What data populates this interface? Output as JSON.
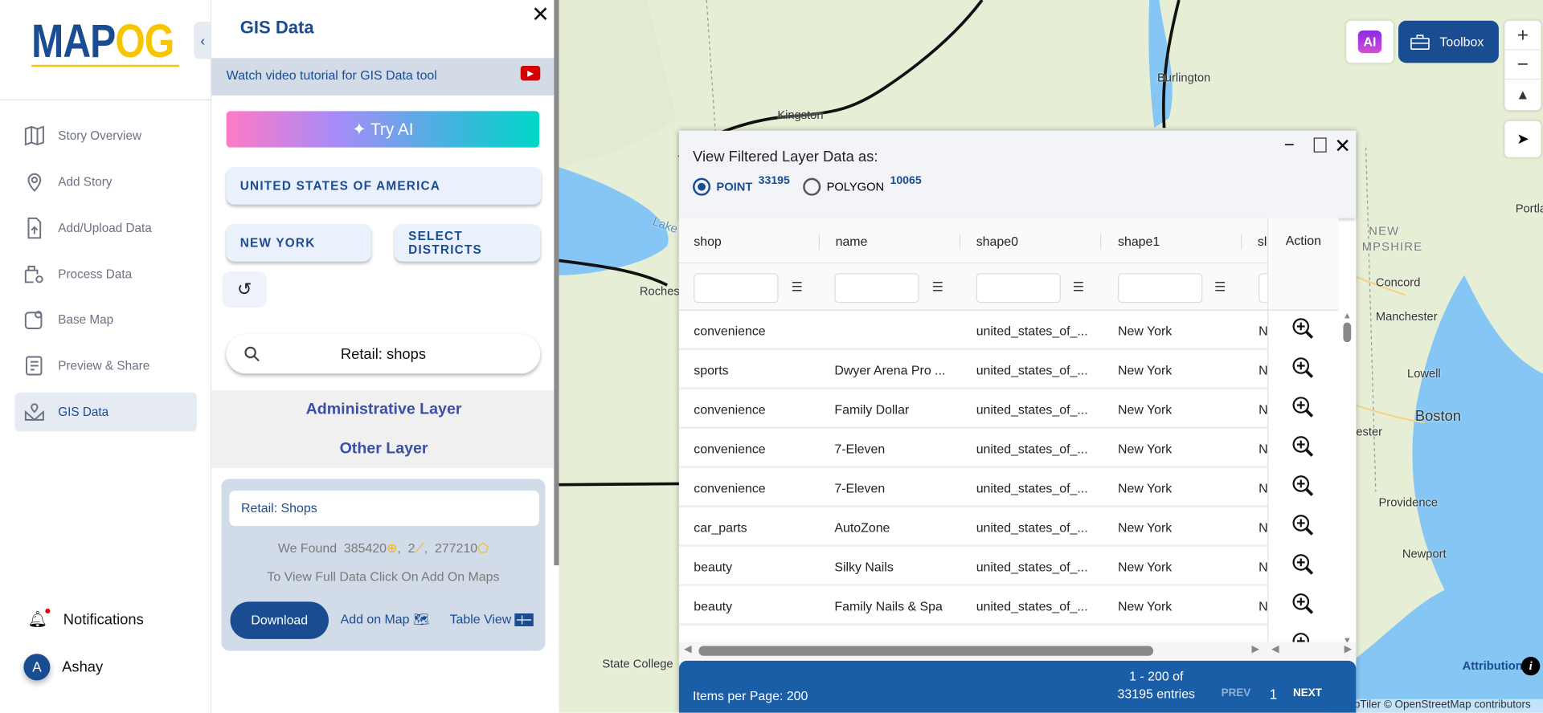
{
  "sidebar": {
    "logo": {
      "part1": "MAP",
      "part2": "OG"
    },
    "items": [
      {
        "label": "Story Overview",
        "icon": "map-icon"
      },
      {
        "label": "Add Story",
        "icon": "location-pin-icon"
      },
      {
        "label": "Add/Upload Data",
        "icon": "file-upload-icon"
      },
      {
        "label": "Process Data",
        "icon": "process-data-icon"
      },
      {
        "label": "Base Map",
        "icon": "base-map-icon"
      },
      {
        "label": "Preview & Share",
        "icon": "preview-share-icon"
      },
      {
        "label": "GIS Data",
        "icon": "gis-data-icon",
        "active": true
      }
    ],
    "notifications": "Notifications",
    "user": {
      "initial": "A",
      "name": "Ashay"
    }
  },
  "panel": {
    "title": "GIS Data",
    "tutorial": "Watch video tutorial for GIS Data tool",
    "try_ai": "Try AI",
    "country": "UNITED STATES OF AMERICA",
    "state": "NEW YORK",
    "districts": "SELECT DISTRICTS",
    "search_value": "Retail: shops",
    "admin_layer": "Administrative Layer",
    "other_layer": "Other Layer",
    "card": {
      "name": "Retail: Shops",
      "found_label": "We Found",
      "points": "385420",
      "lines": "2",
      "polygons": "277210",
      "hint": "To View Full Data Click On Add On Maps",
      "download": "Download",
      "add_on_map": "Add on Map",
      "table_view": "Table View"
    }
  },
  "map": {
    "ai_label": "AI",
    "toolbox": "Toolbox",
    "labels": [
      "Kingston",
      "Burlington",
      "Lake",
      "Roches",
      "NEW",
      "MPSHIRE",
      "Concord",
      "Manchester",
      "Lowell",
      "Boston",
      "ester",
      "Providence",
      "Newport",
      "State College",
      "Portla"
    ],
    "attribution": "Attribution",
    "credits": "pTiler © OpenStreetMap contributors",
    "colors": {
      "land": "#e6eed6",
      "water": "#85c6f5",
      "border": "#111111"
    }
  },
  "modal": {
    "title": "View Filtered Layer Data as:",
    "point_label": "POINT",
    "point_count": "33195",
    "polygon_label": "POLYGON",
    "polygon_count": "10065",
    "selected": "POINT",
    "columns": [
      "shop",
      "name",
      "shape0",
      "shape1",
      "sl"
    ],
    "action_header": "Action",
    "rows": [
      [
        "convenience",
        "",
        "united_states_of_...",
        "New York",
        "N"
      ],
      [
        "sports",
        "Dwyer Arena Pro ...",
        "united_states_of_...",
        "New York",
        "N"
      ],
      [
        "convenience",
        "Family Dollar",
        "united_states_of_...",
        "New York",
        "N"
      ],
      [
        "convenience",
        "7-Eleven",
        "united_states_of_...",
        "New York",
        "N"
      ],
      [
        "convenience",
        "7-Eleven",
        "united_states_of_...",
        "New York",
        "N"
      ],
      [
        "car_parts",
        "AutoZone",
        "united_states_of_...",
        "New York",
        "N"
      ],
      [
        "beauty",
        "Silky Nails",
        "united_states_of_...",
        "New York",
        "N"
      ],
      [
        "beauty",
        "Family Nails & Spa",
        "united_states_of_...",
        "New York",
        "N"
      ]
    ],
    "footer": {
      "items_per_page": "Items per Page: 200",
      "range": "1 - 200 of",
      "entries": "33195 entries",
      "prev": "PREV",
      "page": "1",
      "next": "NEXT"
    }
  }
}
